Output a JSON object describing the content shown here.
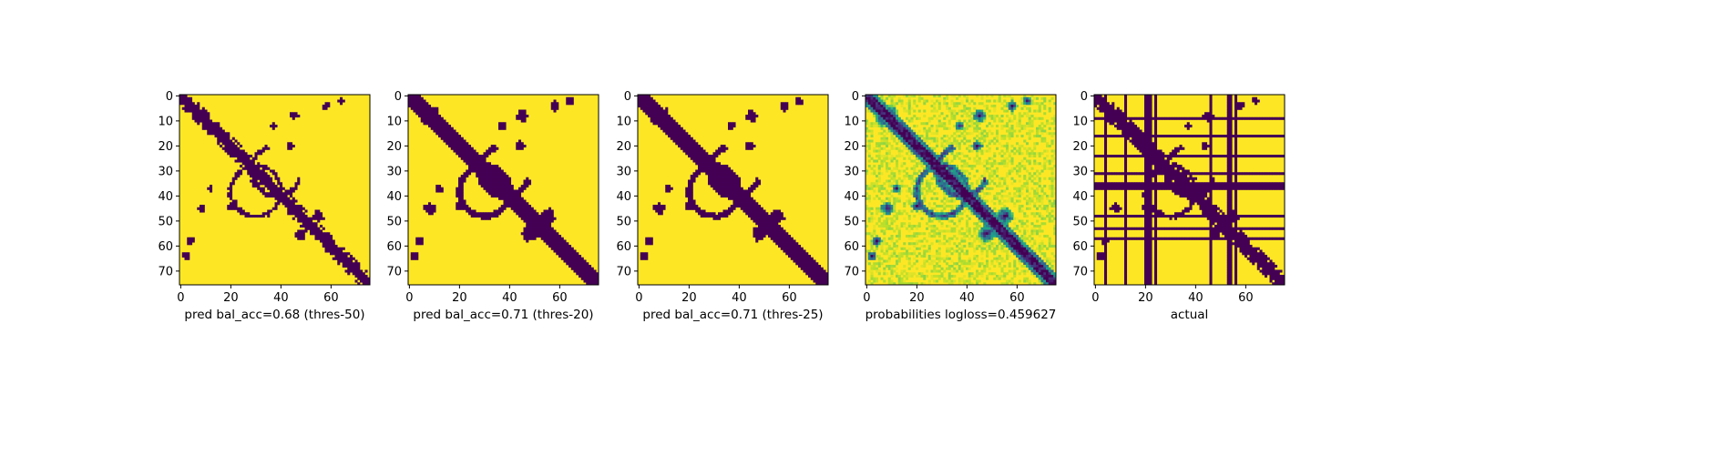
{
  "chart_data": [
    {
      "type": "heatmap",
      "title": "",
      "xlabel": "pred bal_acc=0.68 (thres-50)",
      "x_ticks": [
        0,
        20,
        40,
        60
      ],
      "y_ticks": [
        0,
        10,
        20,
        30,
        40,
        50,
        60,
        70
      ],
      "size": 76,
      "colormap": "viridis",
      "values": "binary contact map: diagonal band, block at (5-12), off-diagonal arcs near (45,20),(60,5),(55,50)"
    },
    {
      "type": "heatmap",
      "title": "",
      "xlabel": "pred bal_acc=0.71 (thres-20)",
      "x_ticks": [
        0,
        20,
        40,
        60
      ],
      "y_ticks": [
        0,
        10,
        20,
        30,
        40,
        50,
        60,
        70
      ],
      "size": 76,
      "colormap": "viridis"
    },
    {
      "type": "heatmap",
      "title": "",
      "xlabel": "pred bal_acc=0.71 (thres-25)",
      "x_ticks": [
        0,
        20,
        40,
        60
      ],
      "y_ticks": [
        0,
        10,
        20,
        30,
        40,
        50,
        60,
        70
      ],
      "size": 76,
      "colormap": "viridis"
    },
    {
      "type": "heatmap",
      "title": "",
      "xlabel": "probabilities logloss=0.459627",
      "x_ticks": [
        0,
        20,
        40,
        60
      ],
      "y_ticks": [
        0,
        10,
        20,
        30,
        40,
        50,
        60,
        70
      ],
      "size": 76,
      "colormap": "viridis"
    },
    {
      "type": "heatmap",
      "title": "",
      "xlabel": "actual",
      "x_ticks": [
        0,
        20,
        40,
        60
      ],
      "y_ticks": [
        0,
        10,
        20,
        30,
        40,
        50,
        60,
        70
      ],
      "size": 76,
      "colormap": "viridis",
      "masked_rows": [
        9,
        16,
        24,
        31,
        35,
        36,
        37,
        48,
        53,
        57
      ],
      "masked_cols": [
        4,
        12,
        20,
        21,
        22,
        24,
        46,
        53,
        54,
        56
      ]
    }
  ]
}
